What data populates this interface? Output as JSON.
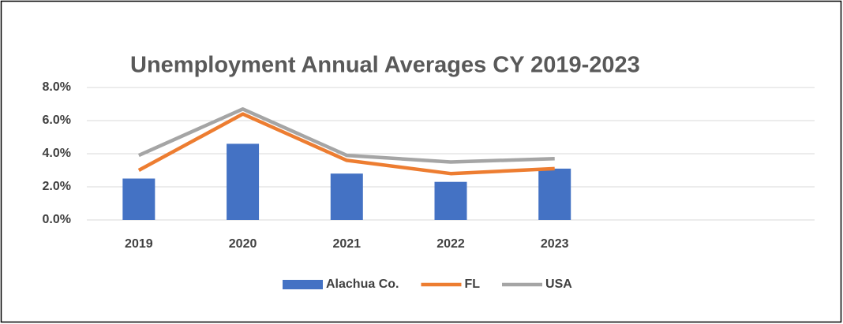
{
  "chart_data": {
    "type": "bar",
    "title": "Unemployment Annual Averages CY 2019-2023",
    "categories": [
      "2019",
      "2020",
      "2021",
      "2022",
      "2023",
      null,
      null
    ],
    "series": [
      {
        "name": "Alachua Co.",
        "type": "bar",
        "color": "#4472c4",
        "values": [
          2.5,
          4.6,
          2.8,
          2.3,
          3.1,
          null,
          null
        ]
      },
      {
        "name": "FL",
        "type": "line",
        "color": "#ed7d31",
        "values": [
          3.0,
          6.4,
          3.6,
          2.8,
          3.1,
          null,
          null
        ]
      },
      {
        "name": "USA",
        "type": "line",
        "color": "#a5a5a5",
        "values": [
          3.9,
          6.7,
          3.9,
          3.5,
          3.7,
          null,
          null
        ]
      }
    ],
    "ylim": [
      0,
      8
    ],
    "yticks": [
      {
        "value": 0,
        "label": "0.0%"
      },
      {
        "value": 2,
        "label": "2.0%"
      },
      {
        "value": 4,
        "label": "4.0%"
      },
      {
        "value": 6,
        "label": "6.0%"
      },
      {
        "value": 8,
        "label": "8.0%"
      }
    ],
    "grid": true,
    "legend": "bottom"
  }
}
